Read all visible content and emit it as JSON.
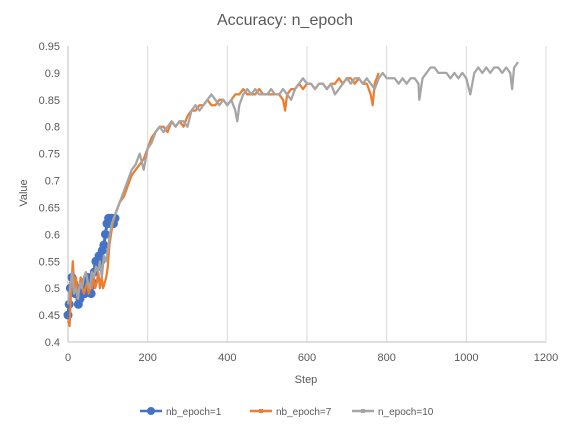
{
  "chart_data": {
    "type": "line",
    "title": "Accuracy: n_epoch",
    "xlabel": "Step",
    "ylabel": "Value",
    "xlim": [
      0,
      1200
    ],
    "ylim": [
      0.4,
      0.95
    ],
    "x_ticks": [
      0,
      200,
      400,
      600,
      800,
      1000,
      1200
    ],
    "y_ticks": [
      "0.4",
      "0.45",
      "0.5",
      "0.55",
      "0.6",
      "0.65",
      "0.7",
      "0.75",
      "0.8",
      "0.85",
      "0.9",
      "0.95"
    ],
    "grid": "vertical",
    "legend_position": "bottom",
    "series": [
      {
        "name": "nb_epoch=1",
        "color": "#4472C4",
        "marker": "circle",
        "x": [
          0,
          3,
          6,
          10,
          14,
          18,
          22,
          26,
          30,
          34,
          38,
          42,
          46,
          50,
          54,
          58,
          62,
          66,
          70,
          74,
          78,
          82,
          86,
          90,
          94,
          98,
          102,
          106,
          110,
          114,
          118
        ],
        "y": [
          0.45,
          0.47,
          0.5,
          0.52,
          0.51,
          0.49,
          0.5,
          0.47,
          0.48,
          0.5,
          0.51,
          0.49,
          0.5,
          0.52,
          0.5,
          0.49,
          0.51,
          0.53,
          0.55,
          0.54,
          0.56,
          0.55,
          0.57,
          0.58,
          0.6,
          0.62,
          0.63,
          0.62,
          0.63,
          0.62,
          0.63
        ]
      },
      {
        "name": "nb_epoch=7",
        "color": "#ED7D31",
        "marker": "none",
        "x": [
          0,
          4,
          8,
          12,
          16,
          20,
          24,
          28,
          32,
          36,
          40,
          44,
          48,
          52,
          56,
          60,
          64,
          68,
          72,
          76,
          80,
          84,
          88,
          92,
          96,
          100,
          104,
          108,
          112,
          116,
          120,
          130,
          140,
          150,
          160,
          170,
          180,
          190,
          200,
          210,
          220,
          230,
          240,
          250,
          260,
          270,
          280,
          290,
          300,
          310,
          320,
          330,
          340,
          350,
          360,
          370,
          380,
          390,
          400,
          410,
          420,
          430,
          440,
          450,
          460,
          470,
          480,
          490,
          500,
          510,
          520,
          530,
          540,
          545,
          550,
          560,
          570,
          580,
          590,
          600,
          610,
          620,
          630,
          640,
          650,
          660,
          670,
          680,
          690,
          700,
          710,
          720,
          730,
          740,
          750,
          760,
          765,
          770,
          780
        ],
        "y": [
          0.44,
          0.43,
          0.5,
          0.55,
          0.5,
          0.52,
          0.48,
          0.5,
          0.52,
          0.5,
          0.49,
          0.5,
          0.51,
          0.49,
          0.5,
          0.5,
          0.52,
          0.5,
          0.51,
          0.53,
          0.5,
          0.52,
          0.5,
          0.51,
          0.52,
          0.54,
          0.58,
          0.6,
          0.62,
          0.63,
          0.64,
          0.66,
          0.67,
          0.69,
          0.71,
          0.72,
          0.73,
          0.74,
          0.76,
          0.78,
          0.79,
          0.8,
          0.8,
          0.79,
          0.81,
          0.8,
          0.81,
          0.8,
          0.82,
          0.83,
          0.83,
          0.84,
          0.84,
          0.85,
          0.84,
          0.84,
          0.85,
          0.85,
          0.84,
          0.85,
          0.86,
          0.86,
          0.87,
          0.86,
          0.86,
          0.86,
          0.87,
          0.86,
          0.86,
          0.86,
          0.86,
          0.86,
          0.85,
          0.83,
          0.86,
          0.87,
          0.87,
          0.88,
          0.87,
          0.88,
          0.88,
          0.87,
          0.88,
          0.88,
          0.87,
          0.88,
          0.88,
          0.89,
          0.88,
          0.89,
          0.89,
          0.88,
          0.89,
          0.88,
          0.88,
          0.86,
          0.84,
          0.88,
          0.9
        ]
      },
      {
        "name": "n_epoch=10",
        "color": "#A5A5A5",
        "marker": "none",
        "x": [
          0,
          5,
          10,
          15,
          20,
          25,
          30,
          35,
          40,
          45,
          50,
          55,
          60,
          65,
          70,
          75,
          80,
          85,
          90,
          95,
          100,
          105,
          110,
          115,
          120,
          130,
          140,
          150,
          160,
          170,
          180,
          190,
          200,
          210,
          220,
          230,
          240,
          250,
          260,
          270,
          280,
          290,
          300,
          310,
          320,
          330,
          340,
          350,
          360,
          370,
          380,
          390,
          400,
          410,
          420,
          425,
          430,
          440,
          450,
          460,
          470,
          480,
          490,
          500,
          510,
          520,
          530,
          540,
          550,
          560,
          570,
          580,
          590,
          600,
          610,
          620,
          630,
          640,
          650,
          660,
          670,
          680,
          690,
          700,
          710,
          720,
          730,
          740,
          750,
          760,
          770,
          780,
          790,
          800,
          810,
          820,
          830,
          840,
          850,
          860,
          870,
          880,
          882,
          890,
          900,
          910,
          920,
          930,
          940,
          950,
          960,
          970,
          980,
          990,
          1000,
          1010,
          1020,
          1030,
          1040,
          1050,
          1060,
          1070,
          1080,
          1090,
          1100,
          1110,
          1115,
          1120,
          1130
        ],
        "y": [
          0.47,
          0.5,
          0.53,
          0.49,
          0.5,
          0.48,
          0.51,
          0.5,
          0.52,
          0.53,
          0.51,
          0.5,
          0.53,
          0.52,
          0.54,
          0.53,
          0.55,
          0.52,
          0.56,
          0.55,
          0.57,
          0.6,
          0.62,
          0.63,
          0.64,
          0.66,
          0.68,
          0.7,
          0.72,
          0.73,
          0.75,
          0.72,
          0.76,
          0.77,
          0.79,
          0.8,
          0.79,
          0.8,
          0.81,
          0.8,
          0.81,
          0.81,
          0.8,
          0.83,
          0.84,
          0.83,
          0.84,
          0.85,
          0.86,
          0.85,
          0.84,
          0.85,
          0.84,
          0.85,
          0.83,
          0.81,
          0.84,
          0.86,
          0.87,
          0.86,
          0.87,
          0.86,
          0.86,
          0.86,
          0.87,
          0.86,
          0.86,
          0.87,
          0.86,
          0.85,
          0.87,
          0.88,
          0.89,
          0.88,
          0.88,
          0.87,
          0.88,
          0.88,
          0.87,
          0.88,
          0.86,
          0.87,
          0.88,
          0.89,
          0.88,
          0.89,
          0.89,
          0.88,
          0.89,
          0.88,
          0.87,
          0.89,
          0.9,
          0.89,
          0.89,
          0.89,
          0.88,
          0.89,
          0.88,
          0.89,
          0.89,
          0.88,
          0.85,
          0.89,
          0.9,
          0.91,
          0.91,
          0.9,
          0.9,
          0.9,
          0.89,
          0.9,
          0.89,
          0.9,
          0.89,
          0.86,
          0.9,
          0.91,
          0.9,
          0.91,
          0.9,
          0.91,
          0.91,
          0.9,
          0.91,
          0.9,
          0.87,
          0.91,
          0.92
        ]
      }
    ]
  }
}
